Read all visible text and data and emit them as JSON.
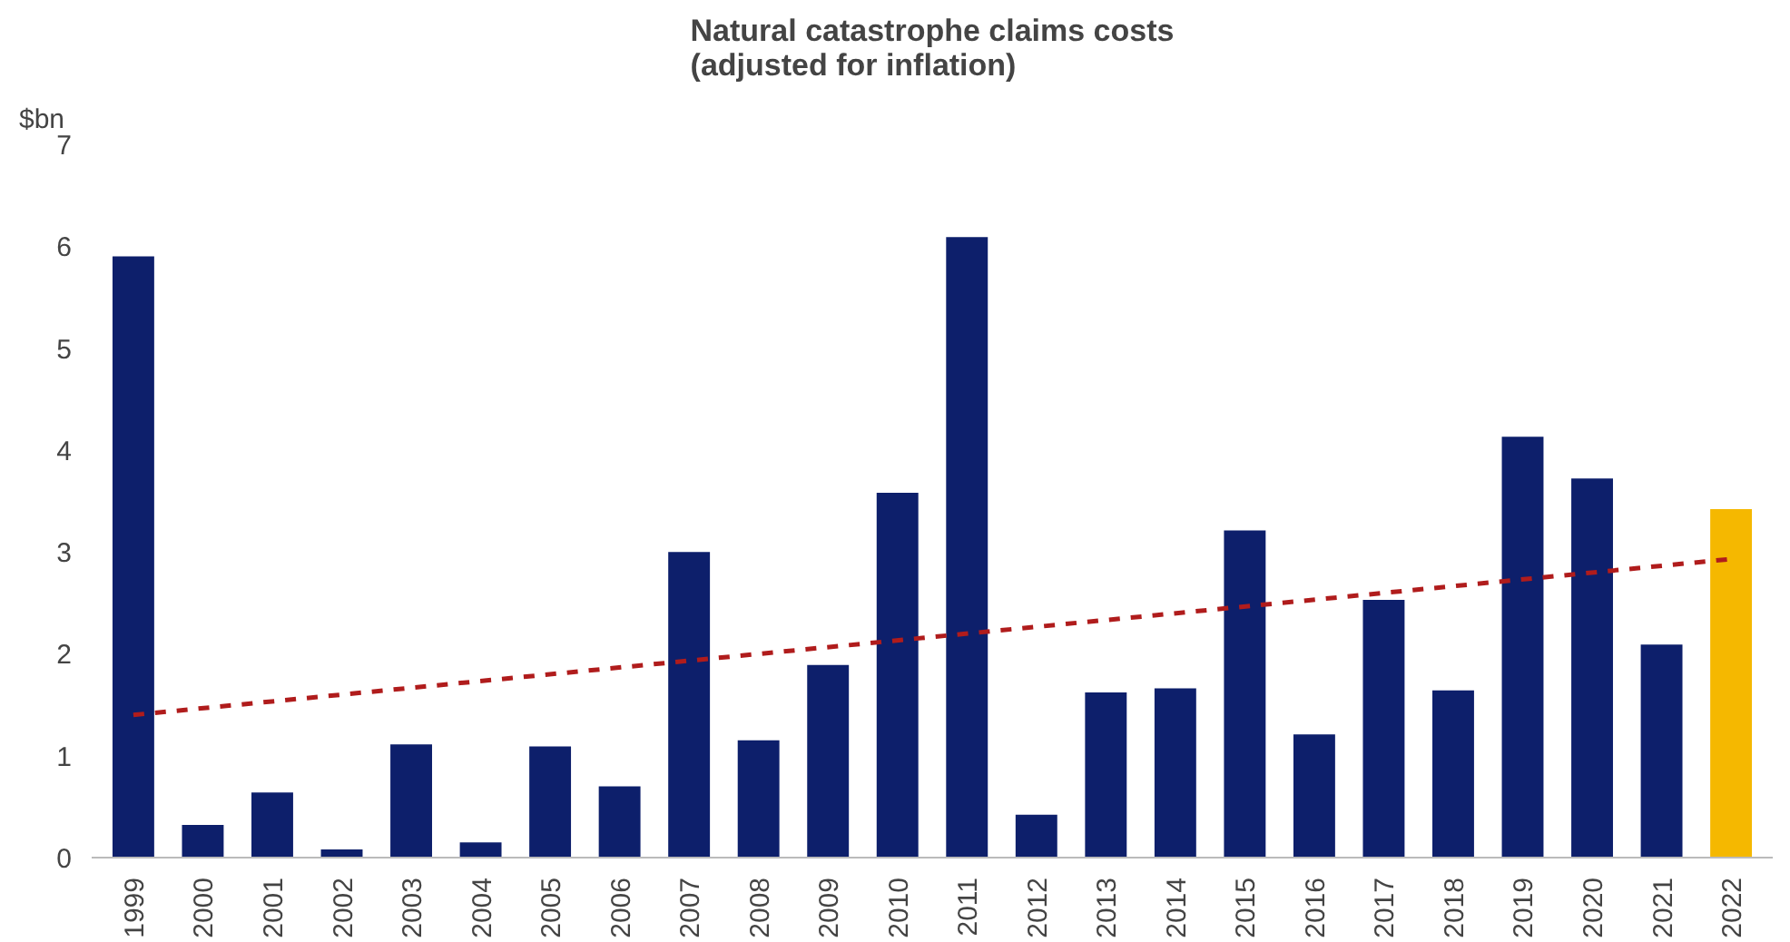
{
  "chart_data": {
    "type": "bar",
    "title": "Natural catastrophe claims costs\n(adjusted for inflation)",
    "ylabel": "$bn",
    "categories": [
      "1999",
      "2000",
      "2001",
      "2002",
      "2003",
      "2004",
      "2005",
      "2006",
      "2007",
      "2008",
      "2009",
      "2010",
      "2011",
      "2012",
      "2013",
      "2014",
      "2015",
      "2016",
      "2017",
      "2018",
      "2019",
      "2020",
      "2021",
      "2022"
    ],
    "series": [
      {
        "values": [
          5.9,
          0.32,
          0.64,
          0.08,
          1.11,
          0.15,
          1.09,
          0.7,
          3.0,
          1.15,
          1.89,
          3.58,
          6.09,
          0.42,
          1.62,
          1.66,
          3.21,
          1.21,
          2.53,
          1.64,
          4.13,
          3.72,
          2.09,
          3.42
        ],
        "colors": [
          "#0d1f6b",
          "#0d1f6b",
          "#0d1f6b",
          "#0d1f6b",
          "#0d1f6b",
          "#0d1f6b",
          "#0d1f6b",
          "#0d1f6b",
          "#0d1f6b",
          "#0d1f6b",
          "#0d1f6b",
          "#0d1f6b",
          "#0d1f6b",
          "#0d1f6b",
          "#0d1f6b",
          "#0d1f6b",
          "#0d1f6b",
          "#0d1f6b",
          "#0d1f6b",
          "#0d1f6b",
          "#0d1f6b",
          "#0d1f6b",
          "#0d1f6b",
          "#f5b800"
        ]
      },
      {
        "type": "line",
        "values": [
          1.4,
          null,
          null,
          null,
          null,
          null,
          null,
          null,
          null,
          null,
          null,
          null,
          null,
          null,
          null,
          null,
          null,
          null,
          null,
          null,
          null,
          null,
          null,
          2.93
        ],
        "color": "#b01c1c",
        "line_style": "dashed"
      }
    ],
    "ylim": [
      0,
      7
    ],
    "yticks": [
      0,
      1,
      2,
      3,
      4,
      5,
      6,
      7
    ],
    "grid": false
  }
}
